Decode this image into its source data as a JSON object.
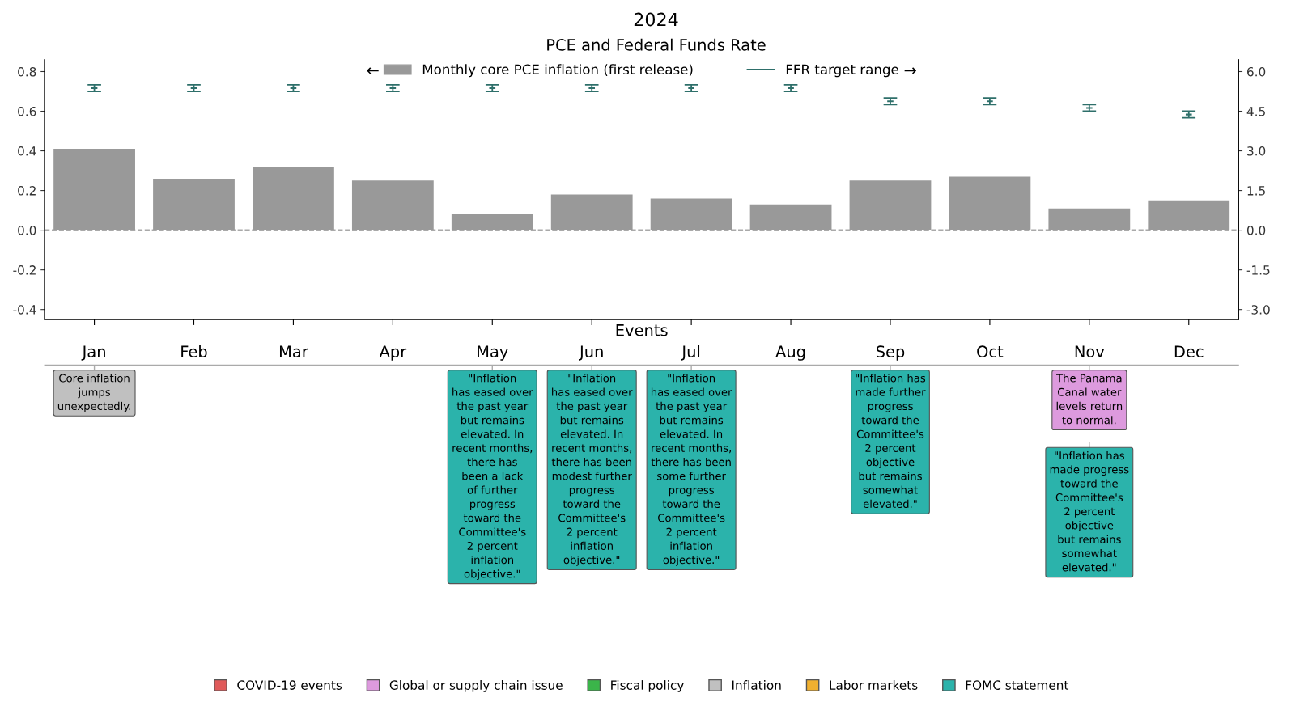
{
  "chart_data": [
    {
      "type": "bar",
      "title": "2024",
      "subtitle": "PCE and Federal Funds Rate",
      "categories": [
        null,
        null,
        null,
        null,
        null,
        null,
        null,
        null,
        null,
        null,
        null,
        null
      ],
      "series": [
        {
          "name": "Monthly core PCE inflation (first release)",
          "color": "#999999",
          "values": [
            0.41,
            0.26,
            0.32,
            0.25,
            0.08,
            0.18,
            0.16,
            0.13,
            0.25,
            0.27,
            0.11,
            0.15
          ]
        },
        {
          "name": "FFR target range",
          "type": "scatter",
          "axis": "y2",
          "color": "#2e6f6a",
          "values": [
            5.375,
            5.375,
            5.375,
            5.375,
            5.375,
            5.375,
            5.375,
            5.375,
            4.875,
            4.875,
            4.625,
            4.375
          ],
          "errors": [
            0.125,
            0.125,
            0.125,
            0.125,
            0.125,
            0.125,
            0.125,
            0.125,
            0.125,
            0.125,
            0.125,
            0.125
          ]
        }
      ],
      "ylim": [
        -0.45,
        0.86
      ],
      "yticks": [
        -0.4,
        -0.2,
        {
          "value": 0,
          "label": "0.0"
        },
        0.2,
        0.4,
        0.6,
        0.8
      ],
      "y2lim": [
        -3.375,
        6.45
      ],
      "y2ticks": [
        {
          "value": -3,
          "label": "-3.0"
        },
        -1.5,
        {
          "value": 0,
          "label": "0.0"
        },
        1.5,
        {
          "value": 3,
          "label": "3.0"
        },
        4.5,
        {
          "value": 6,
          "label": "6.0"
        }
      ],
      "ref_lines": [
        {
          "axis": "y",
          "value": 0,
          "line_style": "dashed",
          "color": "#555555"
        }
      ],
      "annotations": [
        "←",
        "→"
      ],
      "legend": "top",
      "grid": false,
      "tick_labels": "y"
    },
    {
      "type": "other",
      "title": "Events",
      "categories": [
        "Jan",
        "Feb",
        "Mar",
        "Apr",
        "May",
        "Jun",
        "Jul",
        "Aug",
        "Sep",
        "Oct",
        "Nov",
        "Dec"
      ],
      "series": [
        {
          "name": "COVID-19 events",
          "color": "#e05a5a",
          "values": [
            null,
            null,
            null,
            null,
            null,
            null,
            null,
            null,
            null,
            null,
            null,
            null
          ]
        },
        {
          "name": "Global or supply chain issue",
          "color": "#dd9ade",
          "values": [
            null,
            null,
            null,
            null,
            null,
            null,
            null,
            null,
            null,
            null,
            null,
            null
          ]
        },
        {
          "name": "Fiscal policy",
          "color": "#3bb54a",
          "values": [
            null,
            null,
            null,
            null,
            null,
            null,
            null,
            null,
            null,
            null,
            null,
            null
          ]
        },
        {
          "name": "Inflation",
          "color": "#c0c0c0",
          "values": [
            null,
            null,
            null,
            null,
            null,
            null,
            null,
            null,
            null,
            null,
            null,
            null
          ]
        },
        {
          "name": "Labor markets",
          "color": "#f0b030",
          "values": [
            null,
            null,
            null,
            null,
            null,
            null,
            null,
            null,
            null,
            null,
            null,
            null
          ]
        },
        {
          "name": "FOMC statement",
          "color": "#2bb3ab",
          "values": [
            null,
            null,
            null,
            null,
            null,
            null,
            null,
            null,
            null,
            null,
            null,
            null
          ]
        }
      ],
      "colors": [
        "#dd9ade",
        "#c0c0c0",
        "#2bb3ab",
        "#2bb3ab",
        "#2bb3ab",
        "#2bb3ab",
        "#2bb3ab"
      ],
      "annotations": [
        {
          "text": "The Panama\nCanal water\nlevels return\nto normal.",
          "x": "Nov"
        },
        {
          "text": "Core inflation\njumps\nunexpectedly.",
          "x": "Jan"
        },
        {
          "text": "\"Inflation\nhas eased over\nthe past year\nbut remains\nelevated. In\nrecent months,\nthere has\nbeen a lack\nof further\nprogress\ntoward the\nCommittee's\n2 percent\ninflation\nobjective.\"",
          "x": "May"
        },
        {
          "text": "\"Inflation\nhas eased over\nthe past year\nbut remains\nelevated. In\nrecent months,\nthere has been\nmodest further\nprogress\ntoward the\nCommittee's\n2 percent\ninflation\nobjective.\"",
          "x": "Jun"
        },
        {
          "text": "\"Inflation\nhas eased over\nthe past year\nbut remains\nelevated. In\nrecent months,\nthere has been\nsome further\nprogress\ntoward the\nCommittee's\n2 percent\ninflation\nobjective.\"",
          "x": "Jul"
        },
        {
          "text": "\"Inflation has\nmade further\nprogress\ntoward the\nCommittee's\n2 percent\nobjective\nbut remains\nsomewhat\nelevated.\"",
          "x": "Sep"
        },
        {
          "text": "\"Inflation has\nmade progress\ntoward the\nCommittee's\n2 percent\nobjective\nbut remains\nsomewhat\nelevated.\"",
          "x": "Nov"
        }
      ],
      "legend": "bottom"
    }
  ]
}
